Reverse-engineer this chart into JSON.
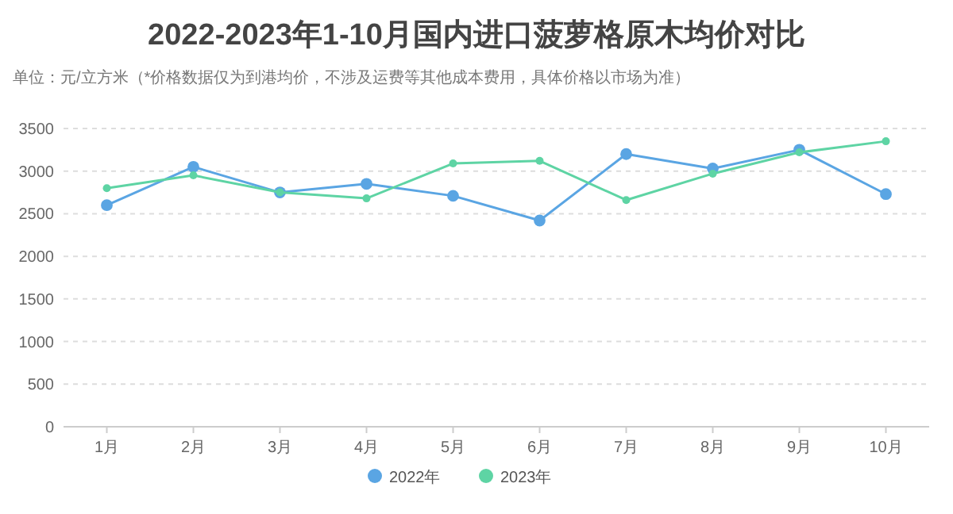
{
  "chart_data": {
    "type": "line",
    "title": "2022-2023年1-10月国内进口菠萝格原木均价对比",
    "subtitle": "单位：元/立方米（*价格数据仅为到港均价，不涉及运费等其他成本费用，具体价格以市场为准）",
    "categories": [
      "1月",
      "2月",
      "3月",
      "4月",
      "5月",
      "6月",
      "7月",
      "8月",
      "9月",
      "10月"
    ],
    "series": [
      {
        "name": "2022年",
        "color": "#5aa5e3",
        "values": [
          2600,
          3050,
          2750,
          2850,
          2710,
          2420,
          3200,
          3030,
          3250,
          2730
        ]
      },
      {
        "name": "2023年",
        "color": "#5ed4a4",
        "values": [
          2800,
          2950,
          2750,
          2680,
          3090,
          3120,
          2660,
          2970,
          3220,
          3350
        ]
      }
    ],
    "ylim": [
      0,
      3500
    ],
    "yticks": [
      0,
      500,
      1000,
      1500,
      2000,
      2500,
      3000,
      3500
    ],
    "grid": "y",
    "legend": "bottom",
    "marker": "circle",
    "line_style": "solid"
  }
}
